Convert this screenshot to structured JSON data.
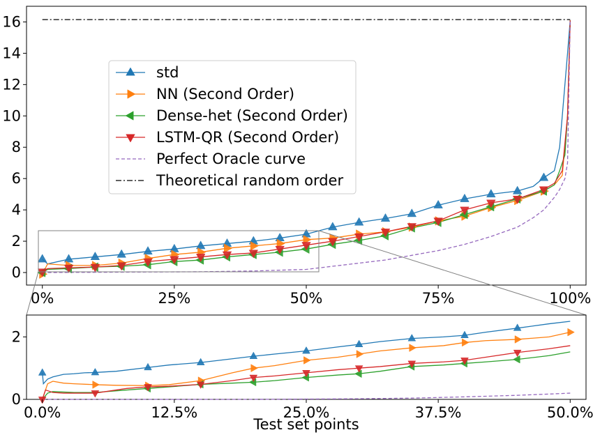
{
  "chart_data": [
    {
      "type": "line",
      "panel": "main",
      "xlabel": "",
      "ylabel": "",
      "x_ticks": [
        "0%",
        "25%",
        "50%",
        "75%",
        "100%"
      ],
      "y_ticks": [
        "0",
        "2",
        "4",
        "6",
        "8",
        "10",
        "12",
        "14",
        "16"
      ],
      "xlim": [
        -3,
        103
      ],
      "ylim": [
        -0.8,
        17.0
      ],
      "grid": false,
      "legend_position": "upper-left",
      "series": [
        {
          "name": "std",
          "color": "#1f77b4",
          "marker": "triangle-up",
          "x": [
            0,
            1,
            5,
            10,
            15,
            20,
            25,
            30,
            35,
            40,
            45,
            50,
            55,
            60,
            65,
            70,
            75,
            80,
            85,
            90,
            93,
            95,
            97,
            98,
            99,
            99.5,
            100
          ],
          "y": [
            0.85,
            0.55,
            0.85,
            1.0,
            1.15,
            1.35,
            1.5,
            1.7,
            1.85,
            2.0,
            2.2,
            2.45,
            2.9,
            3.2,
            3.45,
            3.75,
            4.3,
            4.7,
            5.0,
            5.2,
            5.5,
            6.05,
            6.5,
            8.0,
            12.0,
            14.0,
            16.1
          ],
          "marker_x": [
            0,
            5,
            10,
            15,
            20,
            25,
            30,
            35,
            40,
            45,
            50,
            55,
            60,
            65,
            70,
            75,
            80,
            85,
            90,
            95
          ]
        },
        {
          "name": "NN (Second Order)",
          "color": "#ff7f0e",
          "marker": "triangle-right",
          "x": [
            0,
            1,
            5,
            10,
            15,
            20,
            25,
            30,
            35,
            40,
            45,
            50,
            55,
            60,
            65,
            70,
            75,
            80,
            85,
            90,
            95,
            97,
            98.5,
            99.5,
            100
          ],
          "y": [
            -0.1,
            0.55,
            0.45,
            0.45,
            0.6,
            0.9,
            1.15,
            1.3,
            1.55,
            1.7,
            1.85,
            2.1,
            2.2,
            2.45,
            2.6,
            2.9,
            3.3,
            3.6,
            4.15,
            4.6,
            5.2,
            5.6,
            6.2,
            10.0,
            16.1
          ],
          "marker_x": [
            0,
            5,
            10,
            15,
            20,
            25,
            30,
            35,
            40,
            45,
            50,
            55,
            60,
            65,
            70,
            75,
            80,
            85,
            90,
            95
          ]
        },
        {
          "name": "Dense-het (Second Order)",
          "color": "#2ca02c",
          "marker": "triangle-left",
          "x": [
            0,
            1,
            5,
            10,
            15,
            20,
            25,
            30,
            35,
            40,
            45,
            50,
            55,
            60,
            65,
            70,
            75,
            80,
            85,
            90,
            95,
            97,
            98,
            99,
            99.5,
            100
          ],
          "y": [
            0.0,
            0.2,
            0.25,
            0.35,
            0.4,
            0.5,
            0.7,
            0.8,
            1.0,
            1.15,
            1.3,
            1.5,
            1.8,
            2.05,
            2.35,
            2.85,
            3.2,
            3.7,
            4.2,
            4.7,
            5.2,
            5.6,
            6.5,
            7.5,
            10.0,
            16.1
          ],
          "marker_x": [
            0,
            5,
            10,
            15,
            20,
            25,
            30,
            35,
            40,
            45,
            50,
            55,
            60,
            65,
            70,
            75,
            80,
            85,
            90,
            95
          ]
        },
        {
          "name": "LSTM-QR (Second Order)",
          "color": "#d62728",
          "marker": "triangle-down",
          "x": [
            0,
            1,
            5,
            10,
            15,
            20,
            25,
            30,
            35,
            40,
            45,
            50,
            55,
            60,
            65,
            70,
            75,
            80,
            85,
            90,
            95,
            97,
            98.5,
            99.5,
            100
          ],
          "y": [
            0.05,
            0.25,
            0.3,
            0.35,
            0.45,
            0.7,
            0.85,
            1.0,
            1.15,
            1.25,
            1.5,
            1.75,
            2.0,
            2.3,
            2.6,
            2.95,
            3.3,
            4.0,
            4.45,
            4.7,
            5.3,
            5.7,
            6.5,
            10.0,
            16.1
          ],
          "marker_x": [
            0,
            5,
            10,
            15,
            20,
            25,
            30,
            35,
            40,
            45,
            50,
            55,
            60,
            65,
            70,
            75,
            80,
            85,
            90,
            95
          ]
        },
        {
          "name": "Perfect Oracle curve",
          "color": "#9467bd",
          "dash": "dashed",
          "x": [
            0,
            30,
            40,
            50,
            55,
            60,
            65,
            70,
            75,
            80,
            85,
            90,
            93,
            95,
            97,
            98,
            99,
            99.5,
            100
          ],
          "y": [
            0,
            0.05,
            0.1,
            0.2,
            0.4,
            0.6,
            0.8,
            1.1,
            1.4,
            1.8,
            2.3,
            2.9,
            3.5,
            4.0,
            4.8,
            5.3,
            6.0,
            7.0,
            16.1
          ],
          "marker_x": []
        },
        {
          "name": "Theoretical random order",
          "color": "#000000",
          "dash": "dashdot",
          "x": [
            0,
            100
          ],
          "y": [
            16.15,
            16.15
          ],
          "marker_x": []
        }
      ]
    },
    {
      "type": "line",
      "panel": "zoom",
      "xlabel": "Test set points",
      "ylabel": "",
      "x_ticks": [
        "0.0%",
        "12.5%",
        "25.0%",
        "37.5%",
        "50.0%"
      ],
      "y_ticks": [
        "0",
        "2"
      ],
      "xlim": [
        -1.5,
        51.5
      ],
      "ylim": [
        0,
        2.7
      ],
      "grid": false,
      "series": [
        {
          "name": "std",
          "color": "#1f77b4",
          "marker": "triangle-up",
          "x": [
            0,
            0.1,
            0.5,
            1,
            2,
            3,
            4,
            5,
            7,
            10,
            12,
            15,
            18,
            20,
            22,
            25,
            28,
            30,
            32,
            35,
            38,
            40,
            42,
            45,
            48,
            50
          ],
          "y": [
            0.85,
            0.5,
            0.65,
            0.72,
            0.8,
            0.82,
            0.85,
            0.86,
            0.9,
            1.02,
            1.1,
            1.18,
            1.3,
            1.38,
            1.45,
            1.55,
            1.68,
            1.76,
            1.85,
            1.95,
            2.0,
            2.05,
            2.15,
            2.28,
            2.42,
            2.5
          ],
          "marker_x": [
            0,
            5,
            10,
            15,
            20,
            25,
            30,
            35,
            40,
            45
          ]
        },
        {
          "name": "NN (Second Order)",
          "color": "#ff7f0e",
          "marker": "triangle-right",
          "x": [
            0,
            0.5,
            1,
            2,
            3,
            5,
            7,
            10,
            12,
            15,
            18,
            20,
            22,
            25,
            28,
            30,
            32,
            35,
            38,
            40,
            42,
            45,
            48,
            50
          ],
          "y": [
            0.0,
            0.5,
            0.58,
            0.52,
            0.5,
            0.47,
            0.45,
            0.44,
            0.47,
            0.6,
            0.85,
            1.0,
            1.08,
            1.25,
            1.35,
            1.45,
            1.55,
            1.65,
            1.72,
            1.82,
            1.88,
            1.92,
            2.0,
            2.15
          ],
          "marker_x": [
            5,
            10,
            15,
            20,
            25,
            30,
            35,
            40,
            45,
            50
          ]
        },
        {
          "name": "Dense-het (Second Order)",
          "color": "#2ca02c",
          "marker": "triangle-left",
          "x": [
            0,
            0.5,
            1,
            3,
            5,
            8,
            10,
            12,
            15,
            18,
            20,
            22,
            25,
            28,
            30,
            32,
            35,
            38,
            40,
            42,
            45,
            48,
            50
          ],
          "y": [
            0.0,
            0.2,
            0.25,
            0.22,
            0.22,
            0.3,
            0.35,
            0.4,
            0.48,
            0.52,
            0.55,
            0.6,
            0.7,
            0.78,
            0.82,
            0.9,
            1.05,
            1.1,
            1.15,
            1.2,
            1.28,
            1.4,
            1.52
          ],
          "marker_x": [
            10,
            15,
            20,
            25,
            30,
            35,
            40,
            45
          ]
        },
        {
          "name": "LSTM-QR (Second Order)",
          "color": "#d62728",
          "marker": "triangle-down",
          "x": [
            0,
            0.3,
            1,
            2,
            3,
            5,
            8,
            10,
            12,
            15,
            18,
            20,
            22,
            25,
            28,
            30,
            32,
            35,
            38,
            40,
            42,
            45,
            48,
            50
          ],
          "y": [
            0.0,
            0.3,
            0.22,
            0.2,
            0.2,
            0.2,
            0.35,
            0.4,
            0.42,
            0.48,
            0.6,
            0.7,
            0.75,
            0.85,
            0.95,
            1.0,
            1.05,
            1.15,
            1.2,
            1.25,
            1.35,
            1.5,
            1.62,
            1.72
          ],
          "marker_x": [
            0,
            5,
            10,
            15,
            20,
            25,
            30,
            35,
            40,
            45
          ]
        },
        {
          "name": "Perfect Oracle curve",
          "color": "#9467bd",
          "dash": "dashed",
          "x": [
            0,
            20,
            30,
            35,
            40,
            45,
            48,
            50
          ],
          "y": [
            0.0,
            0.0,
            0.02,
            0.04,
            0.08,
            0.13,
            0.17,
            0.2
          ],
          "marker_x": []
        }
      ]
    }
  ]
}
